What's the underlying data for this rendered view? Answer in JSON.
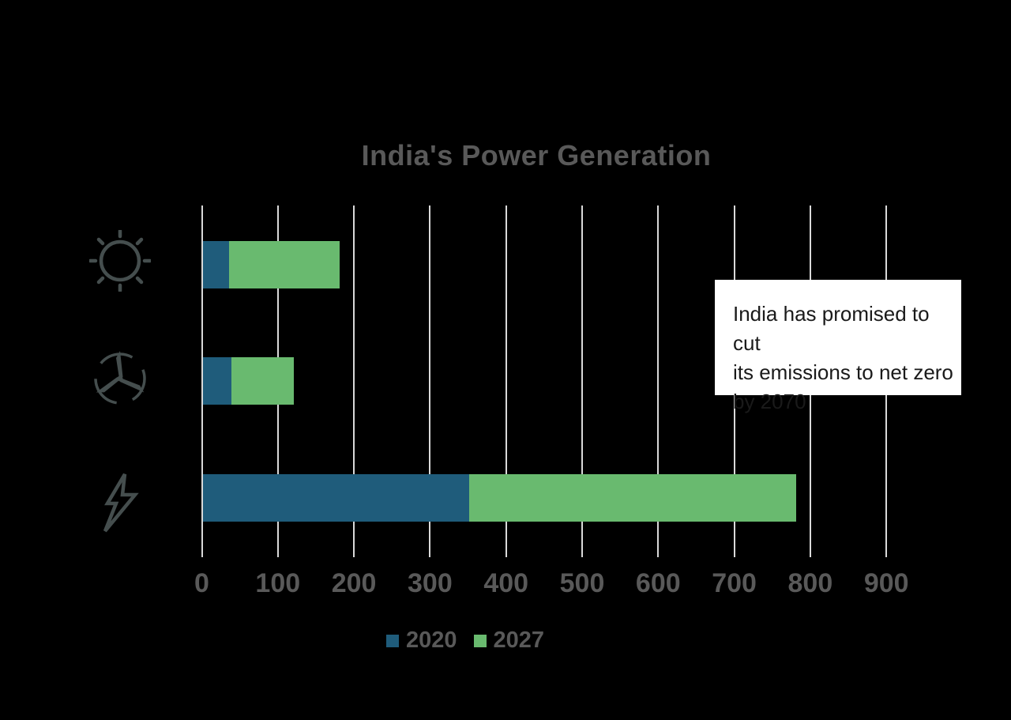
{
  "title": "India's Power Generation",
  "legend": {
    "items": [
      {
        "label": "2020",
        "color": "#1F5C7B"
      },
      {
        "label": "2027",
        "color": "#69BA6F"
      }
    ]
  },
  "annotation": {
    "text": "India has promised to cut its emissions to net zero by 2070",
    "lines": [
      "India has promised to cut",
      "its emissions to net zero",
      "by 2070"
    ]
  },
  "chart_data": {
    "type": "bar",
    "orientation": "horizontal",
    "stacked": true,
    "title": "India's Power Generation",
    "categories": [
      "Solar power",
      "Wind power",
      "Total electricity"
    ],
    "category_icons": [
      "sun",
      "wind-turbine",
      "lightning-bolt"
    ],
    "series": [
      {
        "name": "2020",
        "color": "#1F5C7B",
        "values": [
          35,
          38,
          350
        ]
      },
      {
        "name": "2027",
        "color": "#69BA6F",
        "values": [
          145,
          82,
          430
        ]
      }
    ],
    "stacked_totals": [
      180,
      120,
      780
    ],
    "xlim": [
      0,
      900
    ],
    "x_ticks": [
      0,
      100,
      200,
      300,
      400,
      500,
      600,
      700,
      800,
      900
    ],
    "gridlines": true,
    "legend_position": "bottom",
    "annotation": "India has promised to cut its emissions to net zero by 2070"
  },
  "colors": {
    "background": "#000000",
    "gridline": "#D9D9D9",
    "axis_text": "#595959",
    "title_text": "#595959",
    "icon": "#454E4E",
    "bar_2020": "#1F5C7B",
    "bar_2027": "#69BA6F",
    "annotation_bg": "#FFFFFF",
    "annotation_text": "#1A1A1A"
  }
}
